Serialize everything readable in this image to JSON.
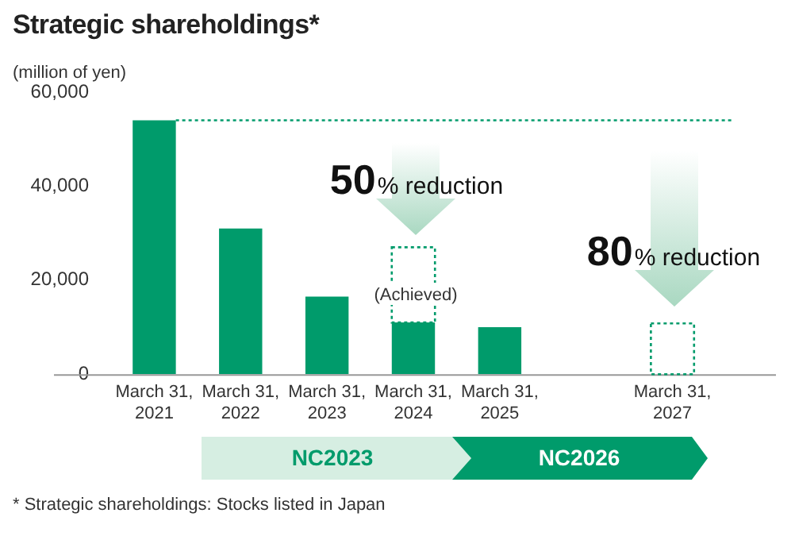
{
  "chart_data": {
    "type": "bar",
    "title": "Strategic shareholdings*",
    "ylabel": "(million of yen)",
    "categories": [
      "March 31, 2021",
      "March 31, 2022",
      "March 31, 2023",
      "March 31, 2024",
      "March 31, 2025",
      null,
      "March 31, 2027"
    ],
    "stacked": true,
    "series": [
      {
        "color": "#009b6b",
        "values": [
          54000,
          31000,
          16500,
          11000,
          10000,
          null,
          null
        ]
      },
      {
        "color": "#009b6b",
        "values": [
          null,
          null,
          null,
          16000,
          null,
          null,
          10800
        ],
        "line_style": "dotted"
      }
    ],
    "ylim": [
      0,
      60000
    ],
    "yticks": [
      0,
      {
        "value": 20000,
        "label": "20,000"
      },
      {
        "value": 40000,
        "label": "40,000"
      },
      {
        "value": 60000,
        "label": "60,000"
      }
    ],
    "grid": false,
    "legend": false,
    "ref_lines": [
      {
        "axis": "y",
        "value": 54000,
        "color": "#009b6b",
        "line_style": "dotted"
      }
    ],
    "annotations": [
      "50% reduction",
      "(Achieved)",
      "80% reduction",
      "NC2023",
      "NC2026",
      "* Strategic shareholdings: Stocks listed in Japan"
    ]
  }
}
